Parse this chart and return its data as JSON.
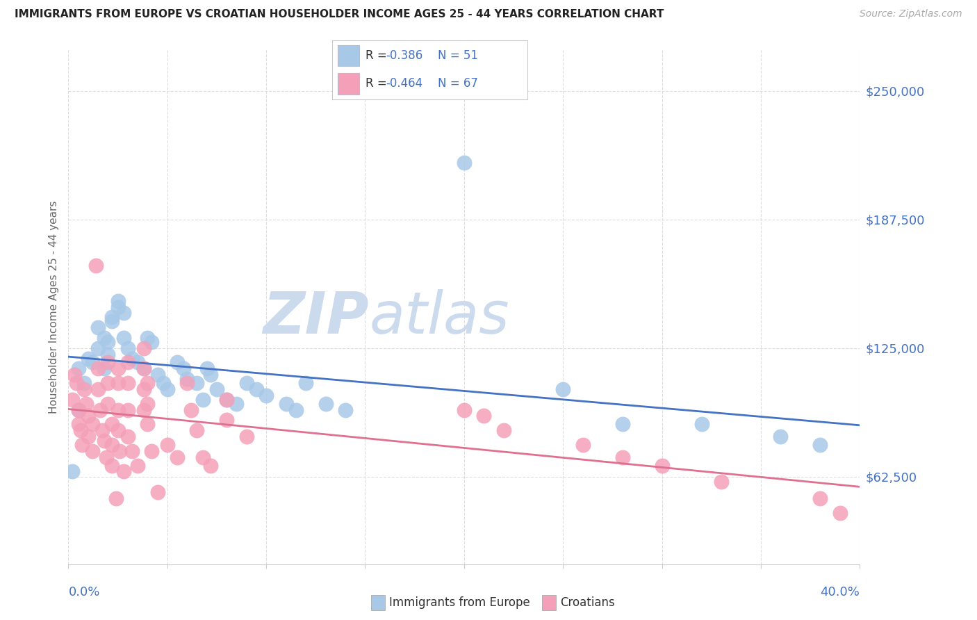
{
  "title": "IMMIGRANTS FROM EUROPE VS CROATIAN HOUSEHOLDER INCOME AGES 25 - 44 YEARS CORRELATION CHART",
  "source": "Source: ZipAtlas.com",
  "ylabel": "Householder Income Ages 25 - 44 years",
  "ytick_labels": [
    "$62,500",
    "$125,000",
    "$187,500",
    "$250,000"
  ],
  "ytick_values": [
    62500,
    125000,
    187500,
    250000
  ],
  "ylim": [
    20000,
    270000
  ],
  "xlim": [
    0.0,
    0.4
  ],
  "legend1_R": "-0.386",
  "legend1_N": "51",
  "legend2_R": "-0.464",
  "legend2_N": "67",
  "color_blue": "#a8c8e8",
  "color_pink": "#f4a0b8",
  "line_blue": "#4472c4",
  "line_pink": "#e07090",
  "tick_color": "#4472c4",
  "grid_color": "#dddddd",
  "watermark_color": "#ccdaee",
  "blue_points_x": [
    0.002,
    0.005,
    0.005,
    0.008,
    0.01,
    0.012,
    0.015,
    0.015,
    0.018,
    0.018,
    0.02,
    0.02,
    0.022,
    0.022,
    0.025,
    0.025,
    0.028,
    0.028,
    0.03,
    0.032,
    0.035,
    0.038,
    0.04,
    0.042,
    0.045,
    0.048,
    0.05,
    0.055,
    0.058,
    0.06,
    0.065,
    0.068,
    0.07,
    0.072,
    0.075,
    0.08,
    0.085,
    0.09,
    0.095,
    0.1,
    0.11,
    0.115,
    0.12,
    0.13,
    0.14,
    0.2,
    0.25,
    0.28,
    0.32,
    0.36,
    0.38
  ],
  "blue_points_y": [
    65000,
    95000,
    115000,
    108000,
    120000,
    118000,
    135000,
    125000,
    130000,
    115000,
    128000,
    122000,
    140000,
    138000,
    148000,
    145000,
    142000,
    130000,
    125000,
    120000,
    118000,
    115000,
    130000,
    128000,
    112000,
    108000,
    105000,
    118000,
    115000,
    110000,
    108000,
    100000,
    115000,
    112000,
    105000,
    100000,
    98000,
    108000,
    105000,
    102000,
    98000,
    95000,
    108000,
    98000,
    95000,
    215000,
    105000,
    88000,
    88000,
    82000,
    78000
  ],
  "pink_points_x": [
    0.002,
    0.003,
    0.004,
    0.005,
    0.005,
    0.006,
    0.007,
    0.008,
    0.009,
    0.01,
    0.01,
    0.012,
    0.012,
    0.014,
    0.015,
    0.015,
    0.016,
    0.017,
    0.018,
    0.019,
    0.02,
    0.02,
    0.02,
    0.022,
    0.022,
    0.022,
    0.024,
    0.025,
    0.025,
    0.025,
    0.025,
    0.026,
    0.028,
    0.03,
    0.03,
    0.03,
    0.03,
    0.032,
    0.035,
    0.038,
    0.038,
    0.038,
    0.038,
    0.04,
    0.04,
    0.04,
    0.042,
    0.045,
    0.05,
    0.055,
    0.06,
    0.062,
    0.065,
    0.068,
    0.072,
    0.08,
    0.08,
    0.09,
    0.2,
    0.21,
    0.22,
    0.26,
    0.28,
    0.3,
    0.33,
    0.38,
    0.39
  ],
  "pink_points_y": [
    100000,
    112000,
    108000,
    95000,
    88000,
    85000,
    78000,
    105000,
    98000,
    92000,
    82000,
    88000,
    75000,
    165000,
    115000,
    105000,
    95000,
    85000,
    80000,
    72000,
    118000,
    108000,
    98000,
    88000,
    78000,
    68000,
    52000,
    115000,
    108000,
    95000,
    85000,
    75000,
    65000,
    118000,
    108000,
    95000,
    82000,
    75000,
    68000,
    125000,
    115000,
    105000,
    95000,
    108000,
    98000,
    88000,
    75000,
    55000,
    78000,
    72000,
    108000,
    95000,
    85000,
    72000,
    68000,
    100000,
    90000,
    82000,
    95000,
    92000,
    85000,
    78000,
    72000,
    68000,
    60000,
    52000,
    45000
  ]
}
